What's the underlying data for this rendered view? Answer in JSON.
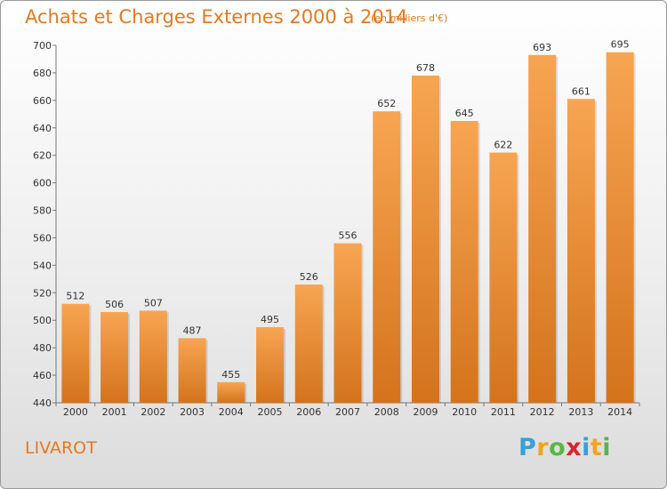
{
  "header": {
    "title": "Achats et Charges Externes 2000 à 2014",
    "subtitle": "(en milliers d'€)"
  },
  "footer": {
    "place": "LIVAROT",
    "logo": [
      "P",
      "r",
      "o",
      "x",
      "i",
      "t",
      "i"
    ],
    "logo_colors": [
      "#3a9fd8",
      "#f5a21f",
      "#5ab646",
      "#d6262e",
      "#3a9fd8",
      "#f5a21f",
      "#5ab646"
    ]
  },
  "colors": {
    "accent": "#e8781e",
    "bar_top": "#f7a552",
    "bar_bottom": "#d4731c"
  },
  "chart_data": {
    "type": "bar",
    "categories": [
      "2000",
      "2001",
      "2002",
      "2003",
      "2004",
      "2005",
      "2006",
      "2007",
      "2008",
      "2009",
      "2010",
      "2011",
      "2012",
      "2013",
      "2014"
    ],
    "values": [
      512,
      506,
      507,
      487,
      455,
      495,
      526,
      556,
      652,
      678,
      645,
      622,
      693,
      661,
      695
    ],
    "title": "Achats et Charges Externes 2000 à 2014",
    "xlabel": "",
    "ylabel": "",
    "ylim": [
      440,
      700
    ],
    "yticks": [
      440,
      460,
      480,
      500,
      520,
      540,
      560,
      580,
      600,
      620,
      640,
      660,
      680,
      700
    ],
    "grid": false
  }
}
